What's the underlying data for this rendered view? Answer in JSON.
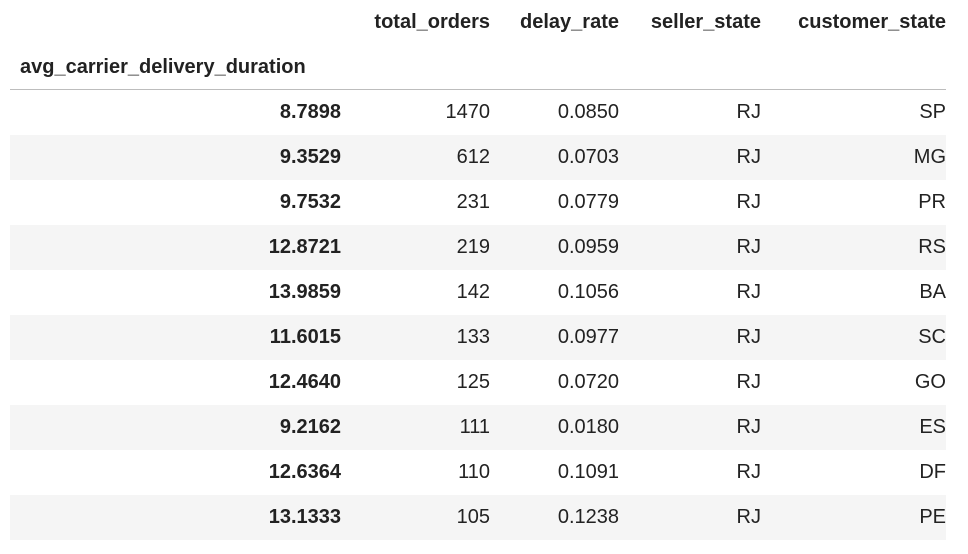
{
  "table": {
    "index_name": "avg_carrier_delivery_duration",
    "columns": [
      "total_orders",
      "delay_rate",
      "seller_state",
      "customer_state"
    ],
    "rows": [
      {
        "index": "8.7898",
        "total_orders": "1470",
        "delay_rate": "0.0850",
        "seller_state": "RJ",
        "customer_state": "SP"
      },
      {
        "index": "9.3529",
        "total_orders": "612",
        "delay_rate": "0.0703",
        "seller_state": "RJ",
        "customer_state": "MG"
      },
      {
        "index": "9.7532",
        "total_orders": "231",
        "delay_rate": "0.0779",
        "seller_state": "RJ",
        "customer_state": "PR"
      },
      {
        "index": "12.8721",
        "total_orders": "219",
        "delay_rate": "0.0959",
        "seller_state": "RJ",
        "customer_state": "RS"
      },
      {
        "index": "13.9859",
        "total_orders": "142",
        "delay_rate": "0.1056",
        "seller_state": "RJ",
        "customer_state": "BA"
      },
      {
        "index": "11.6015",
        "total_orders": "133",
        "delay_rate": "0.0977",
        "seller_state": "RJ",
        "customer_state": "SC"
      },
      {
        "index": "12.4640",
        "total_orders": "125",
        "delay_rate": "0.0720",
        "seller_state": "RJ",
        "customer_state": "GO"
      },
      {
        "index": "9.2162",
        "total_orders": "111",
        "delay_rate": "0.0180",
        "seller_state": "RJ",
        "customer_state": "ES"
      },
      {
        "index": "12.6364",
        "total_orders": "110",
        "delay_rate": "0.1091",
        "seller_state": "RJ",
        "customer_state": "DF"
      },
      {
        "index": "13.1333",
        "total_orders": "105",
        "delay_rate": "0.1238",
        "seller_state": "RJ",
        "customer_state": "PE"
      }
    ]
  }
}
